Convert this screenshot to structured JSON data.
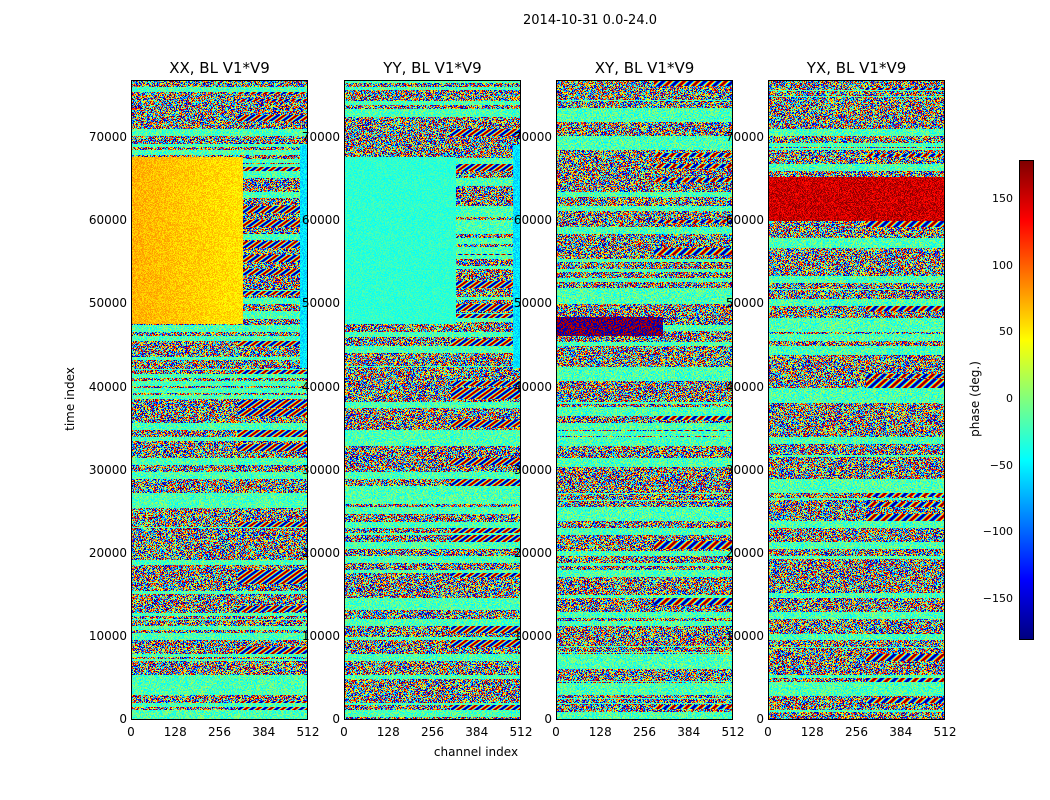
{
  "figure": {
    "title": "2014-10-31 0.0-24.0"
  },
  "chart_data": {
    "type": "heatmap",
    "title": "2014-10-31 0.0-24.0",
    "xlabel": "channel index",
    "ylabel": "time index",
    "xlim": [
      0,
      512
    ],
    "ylim": [
      0,
      77000
    ],
    "x_ticks": [
      0,
      128,
      256,
      384,
      512
    ],
    "y_ticks": [
      0,
      10000,
      20000,
      30000,
      40000,
      50000,
      60000,
      70000
    ],
    "colormap": "jet",
    "grid": false,
    "colorbar": {
      "label": "phase (deg.)",
      "range": [
        -180,
        180
      ],
      "ticks": [
        -150,
        -100,
        -50,
        0,
        50,
        100,
        150
      ],
      "placement": "right"
    },
    "panels": [
      {
        "title": "XX, BL V1*V9",
        "pol": "XX"
      },
      {
        "title": "YY, BL V1*V9",
        "pol": "YY"
      },
      {
        "title": "XY, BL V1*V9",
        "pol": "XY"
      },
      {
        "title": "YX, BL V1*V9",
        "pol": "YX"
      }
    ]
  }
}
